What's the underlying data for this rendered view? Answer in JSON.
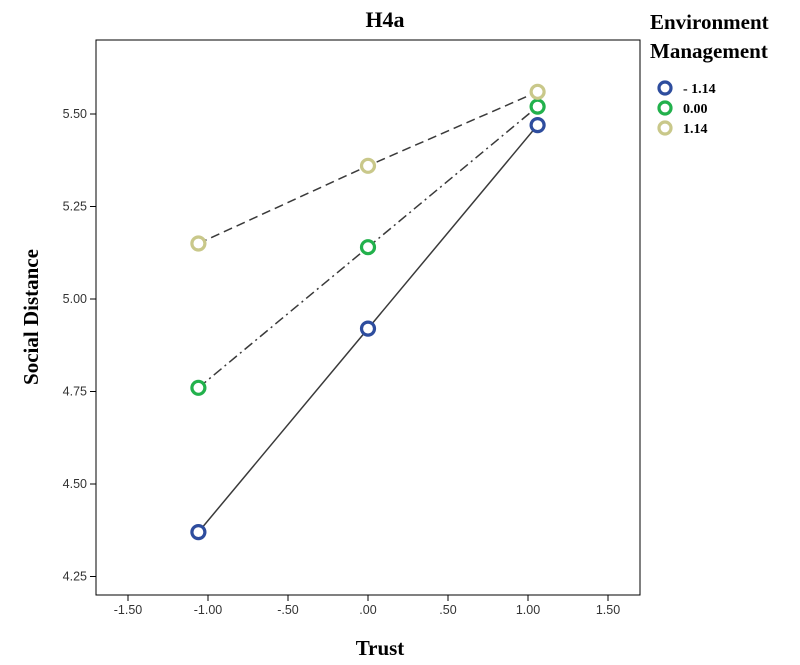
{
  "chart_data": {
    "type": "line",
    "title": "H4a",
    "xlabel": "Trust",
    "ylabel": "Social Distance",
    "xlim": [
      -1.7,
      1.7
    ],
    "ylim": [
      4.2,
      5.7
    ],
    "x_ticks": [
      -1.5,
      -1.0,
      -0.5,
      0.0,
      0.5,
      1.0,
      1.5
    ],
    "x_tick_labels": [
      "-1.50",
      "-1.00",
      "-.50",
      ".00",
      ".50",
      "1.00",
      "1.50"
    ],
    "y_ticks": [
      4.25,
      4.5,
      4.75,
      5.0,
      5.25,
      5.5
    ],
    "y_tick_labels": [
      "4.25",
      "4.50",
      "4.75",
      "5.00",
      "5.25",
      "5.50"
    ],
    "grid": false,
    "legend": {
      "title": [
        "Environment",
        "Management"
      ],
      "position": "right"
    },
    "series": [
      {
        "name": "- 1.14",
        "color": "#2e4d9e",
        "line_style": "solid",
        "x": [
          -1.06,
          0.0,
          1.06
        ],
        "y": [
          4.37,
          4.92,
          5.47
        ]
      },
      {
        "name": "0.00",
        "color": "#22b14c",
        "line_style": "dashdot",
        "x": [
          -1.06,
          0.0,
          1.06
        ],
        "y": [
          4.76,
          5.14,
          5.52
        ]
      },
      {
        "name": "1.14",
        "color": "#c9c88a",
        "line_style": "dashed",
        "x": [
          -1.06,
          0.0,
          1.06
        ],
        "y": [
          5.15,
          5.36,
          5.56
        ]
      }
    ]
  }
}
